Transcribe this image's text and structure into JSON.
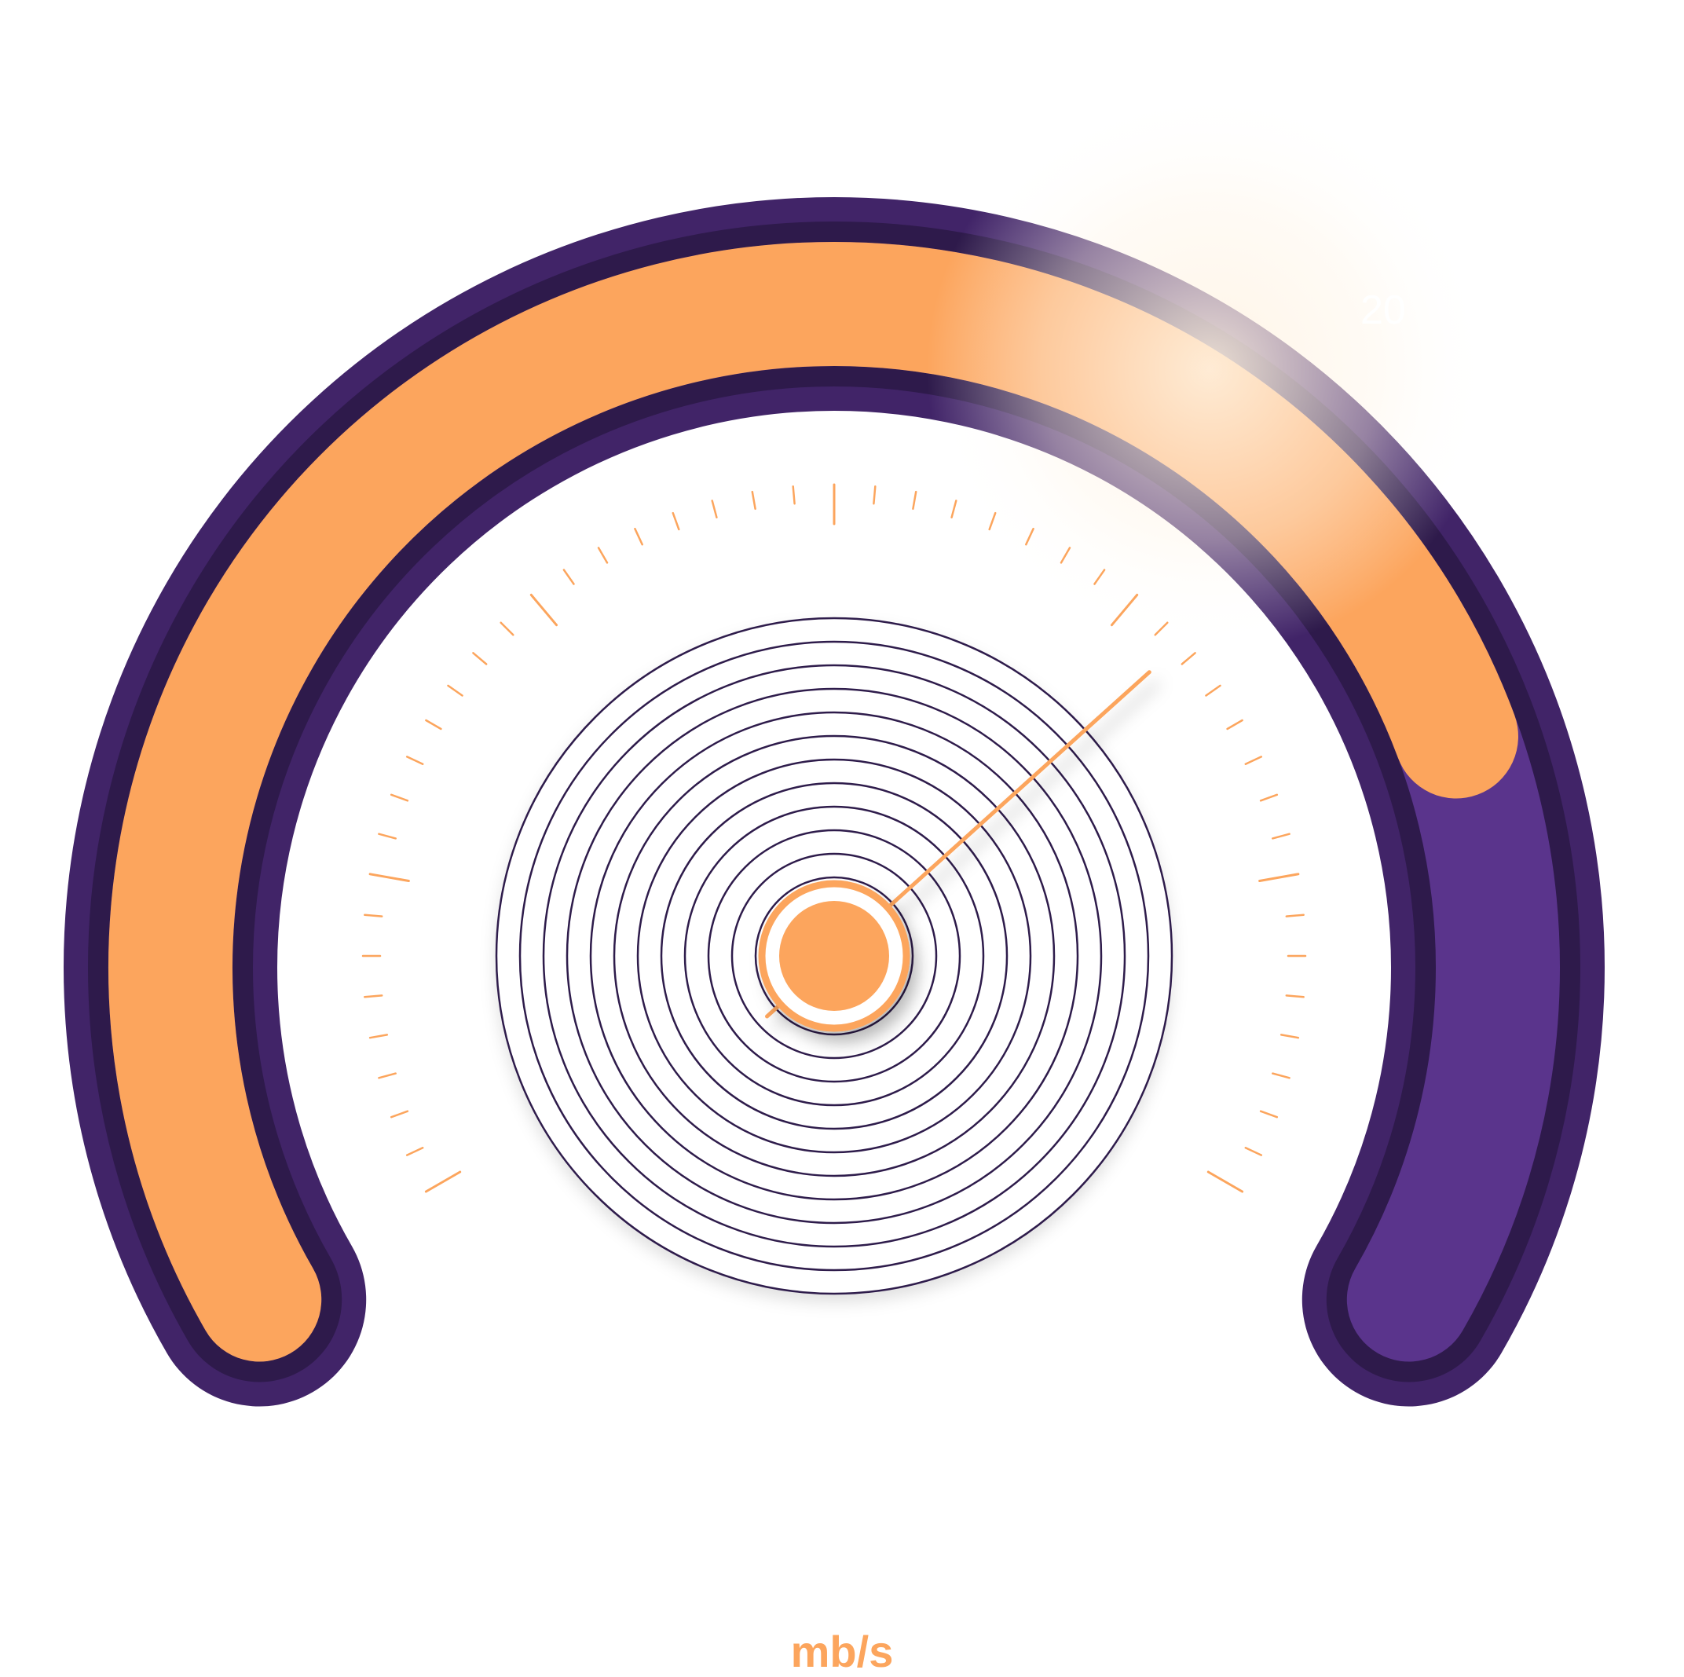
{
  "gauge": {
    "unit": "mb/s",
    "visible_scale_label": "20",
    "fill_fraction": 0.79,
    "needle_fraction": 0.7,
    "colors": {
      "track": "#412468",
      "track_dark": "#2e1a4b",
      "fill": "#fca55d",
      "remaining": "#5a348c",
      "tick": "#fca55d",
      "rings": "#2e1a4b",
      "hub": "#fca55d"
    }
  }
}
